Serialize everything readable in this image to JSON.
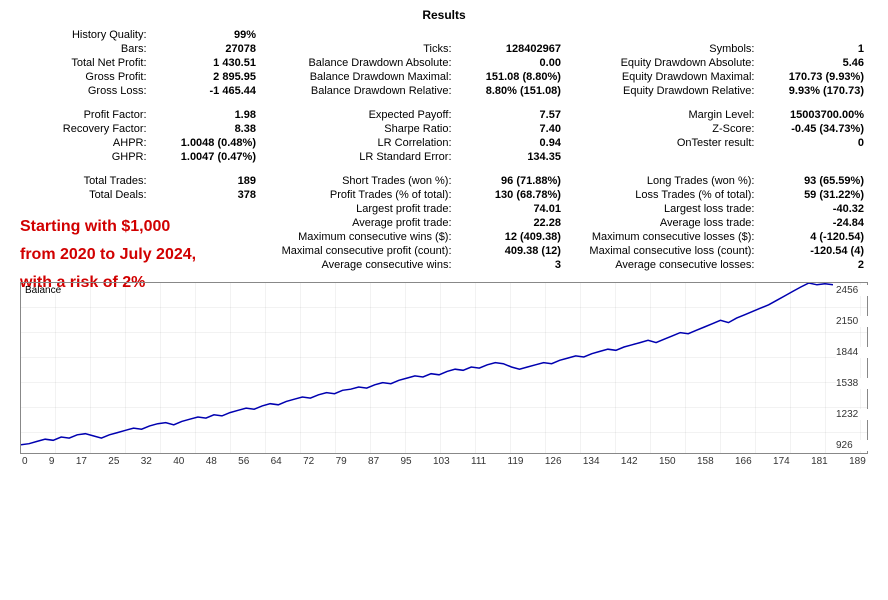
{
  "title": "Results",
  "rows": [
    [
      [
        "History Quality:",
        "99%"
      ],
      [
        "",
        ""
      ],
      [
        "",
        ""
      ]
    ],
    [
      [
        "Bars:",
        "27078"
      ],
      [
        "Ticks:",
        "128402967"
      ],
      [
        "Symbols:",
        "1"
      ]
    ],
    [
      [
        "Total Net Profit:",
        "1 430.51"
      ],
      [
        "Balance Drawdown Absolute:",
        "0.00"
      ],
      [
        "Equity Drawdown Absolute:",
        "5.46"
      ]
    ],
    [
      [
        "Gross Profit:",
        "2 895.95"
      ],
      [
        "Balance Drawdown Maximal:",
        "151.08 (8.80%)"
      ],
      [
        "Equity Drawdown Maximal:",
        "170.73 (9.93%)"
      ]
    ],
    [
      [
        "Gross Loss:",
        "-1 465.44"
      ],
      [
        "Balance Drawdown Relative:",
        "8.80% (151.08)"
      ],
      [
        "Equity Drawdown Relative:",
        "9.93% (170.73)"
      ]
    ],
    null,
    [
      [
        "Profit Factor:",
        "1.98"
      ],
      [
        "Expected Payoff:",
        "7.57"
      ],
      [
        "Margin Level:",
        "15003700.00%"
      ]
    ],
    [
      [
        "Recovery Factor:",
        "8.38"
      ],
      [
        "Sharpe Ratio:",
        "7.40"
      ],
      [
        "Z-Score:",
        "-0.45 (34.73%)"
      ]
    ],
    [
      [
        "AHPR:",
        "1.0048 (0.48%)"
      ],
      [
        "LR Correlation:",
        "0.94"
      ],
      [
        "OnTester result:",
        "0"
      ]
    ],
    [
      [
        "GHPR:",
        "1.0047 (0.47%)"
      ],
      [
        "LR Standard Error:",
        "134.35"
      ],
      [
        "",
        ""
      ]
    ],
    null,
    [
      [
        "Total Trades:",
        "189"
      ],
      [
        "Short Trades (won %):",
        "96 (71.88%)"
      ],
      [
        "Long Trades (won %):",
        "93 (65.59%)"
      ]
    ],
    [
      [
        "Total Deals:",
        "378"
      ],
      [
        "Profit Trades (% of total):",
        "130 (68.78%)"
      ],
      [
        "Loss Trades (% of total):",
        "59 (31.22%)"
      ]
    ],
    [
      [
        "",
        ""
      ],
      [
        "Largest profit trade:",
        "74.01"
      ],
      [
        "Largest loss trade:",
        "-40.32"
      ]
    ],
    [
      [
        "",
        ""
      ],
      [
        "Average profit trade:",
        "22.28"
      ],
      [
        "Average loss trade:",
        "-24.84"
      ]
    ],
    [
      [
        "",
        ""
      ],
      [
        "Maximum consecutive wins ($):",
        "12 (409.38)"
      ],
      [
        "Maximum consecutive losses ($):",
        "4 (-120.54)"
      ]
    ],
    [
      [
        "",
        ""
      ],
      [
        "Maximal consecutive profit (count):",
        "409.38 (12)"
      ],
      [
        "Maximal consecutive loss (count):",
        "-120.54 (4)"
      ]
    ],
    [
      [
        "",
        ""
      ],
      [
        "Average consecutive wins:",
        "3"
      ],
      [
        "Average consecutive losses:",
        "2"
      ]
    ]
  ],
  "overlay_lines": [
    "Starting with $1,000",
    "from 2020 to July 2024,",
    "with a risk of 2%"
  ],
  "chart": {
    "label": "Balance",
    "line_color": "#0000b0",
    "line_width": 1.5,
    "background": "#ffffff",
    "x_ticks": [
      "0",
      "9",
      "17",
      "25",
      "32",
      "40",
      "48",
      "56",
      "64",
      "72",
      "79",
      "87",
      "95",
      "103",
      "111",
      "119",
      "126",
      "134",
      "142",
      "150",
      "158",
      "166",
      "174",
      "181",
      "189"
    ],
    "y_ticks": [
      "2456",
      "2150",
      "1844",
      "1538",
      "1232",
      "926"
    ],
    "y_min": 926,
    "y_max": 2456,
    "values": [
      1000,
      1010,
      1030,
      1050,
      1040,
      1070,
      1060,
      1090,
      1100,
      1080,
      1060,
      1090,
      1110,
      1130,
      1150,
      1140,
      1170,
      1190,
      1200,
      1180,
      1210,
      1230,
      1250,
      1240,
      1270,
      1260,
      1290,
      1310,
      1330,
      1320,
      1350,
      1370,
      1360,
      1390,
      1410,
      1430,
      1420,
      1450,
      1470,
      1460,
      1490,
      1500,
      1520,
      1510,
      1540,
      1560,
      1550,
      1580,
      1600,
      1620,
      1610,
      1640,
      1630,
      1660,
      1680,
      1670,
      1700,
      1690,
      1720,
      1740,
      1730,
      1700,
      1680,
      1700,
      1720,
      1740,
      1730,
      1760,
      1780,
      1800,
      1790,
      1820,
      1840,
      1860,
      1850,
      1880,
      1900,
      1920,
      1940,
      1920,
      1950,
      1980,
      2010,
      2000,
      2030,
      2060,
      2090,
      2120,
      2100,
      2140,
      2170,
      2200,
      2230,
      2260,
      2300,
      2340,
      2380,
      2420,
      2456,
      2440,
      2450,
      2440
    ]
  }
}
